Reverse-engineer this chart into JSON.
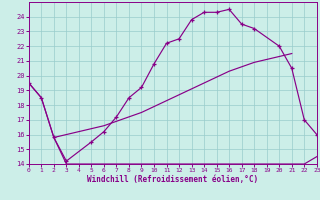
{
  "bg_color": "#cceee8",
  "line_color": "#880088",
  "grid_color": "#99cccc",
  "xlabel": "Windchill (Refroidissement éolien,°C)",
  "xlim": [
    0,
    23
  ],
  "ylim": [
    14,
    25
  ],
  "yticks": [
    14,
    15,
    16,
    17,
    18,
    19,
    20,
    21,
    22,
    23,
    24
  ],
  "xticks": [
    0,
    1,
    2,
    3,
    4,
    5,
    6,
    7,
    8,
    9,
    10,
    11,
    12,
    13,
    14,
    15,
    16,
    17,
    18,
    19,
    20,
    21,
    22,
    23
  ],
  "curve_x": [
    0,
    1,
    2,
    3,
    5,
    6,
    7,
    8,
    9,
    10,
    11,
    12,
    13,
    14,
    15,
    16,
    17,
    18,
    20,
    21,
    22,
    23
  ],
  "curve_y": [
    19.5,
    18.5,
    15.8,
    14.2,
    15.5,
    16.2,
    17.2,
    18.5,
    19.2,
    20.8,
    22.2,
    22.5,
    23.8,
    24.3,
    24.3,
    24.5,
    23.5,
    23.2,
    22.0,
    20.5,
    17.0,
    16.0
  ],
  "rise_x": [
    2,
    3,
    4,
    5,
    6,
    7,
    8,
    9,
    10,
    11,
    12,
    13,
    14,
    15,
    16,
    17,
    18,
    19,
    20,
    21
  ],
  "rise_y": [
    15.8,
    16.0,
    16.2,
    16.4,
    16.6,
    16.9,
    17.2,
    17.5,
    17.9,
    18.3,
    18.7,
    19.1,
    19.5,
    19.9,
    20.3,
    20.6,
    20.9,
    21.1,
    21.3,
    21.5
  ],
  "flat_x": [
    0,
    1,
    2,
    3,
    4,
    5,
    6,
    7,
    8,
    9,
    10,
    11,
    12,
    13,
    14,
    15,
    16,
    17,
    18,
    19,
    20,
    21,
    22,
    23
  ],
  "flat_y": [
    19.5,
    18.5,
    15.8,
    14.0,
    14.0,
    14.0,
    14.0,
    14.0,
    14.0,
    14.0,
    14.0,
    14.0,
    14.0,
    14.0,
    14.0,
    14.0,
    14.0,
    14.0,
    14.0,
    14.0,
    14.0,
    14.0,
    14.0,
    14.5
  ]
}
